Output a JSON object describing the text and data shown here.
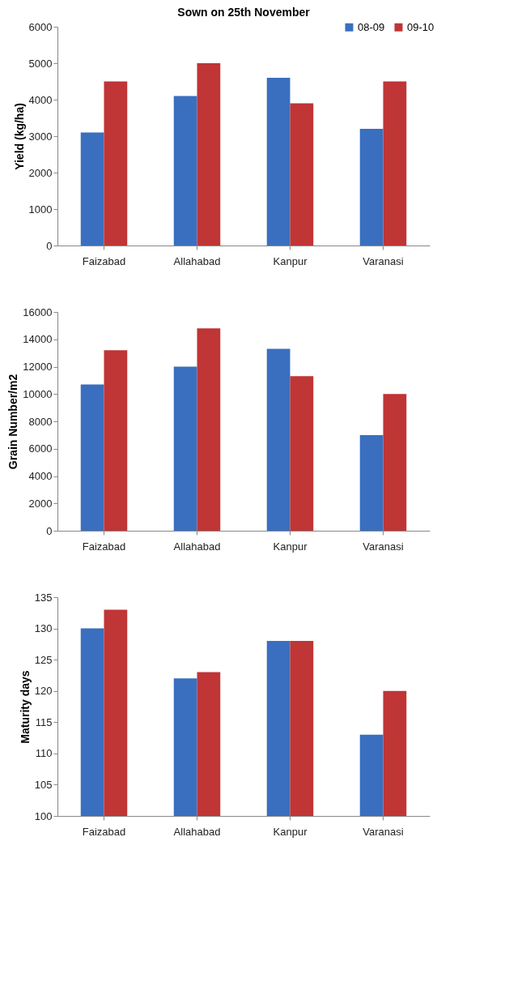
{
  "chart_data": [
    {
      "type": "bar",
      "title": "Sown on 25th November",
      "ylabel": "Yield  (kg/ha)",
      "categories": [
        "Faizabad",
        "Allahabad",
        "Kanpur",
        "Varanasi"
      ],
      "ylim": [
        0,
        6000
      ],
      "yticks": [
        0,
        1000,
        2000,
        3000,
        4000,
        5000,
        6000
      ],
      "legend": "top right",
      "series": [
        {
          "name": "08-09",
          "color": "#3a6fbf",
          "values": [
            3100,
            4100,
            4600,
            3200
          ]
        },
        {
          "name": "09-10",
          "color": "#c03535",
          "values": [
            4500,
            5000,
            3900,
            4500
          ]
        }
      ]
    },
    {
      "type": "bar",
      "ylabel": "Grain Number/m2",
      "categories": [
        "Faizabad",
        "Allahabad",
        "Kanpur",
        "Varanasi"
      ],
      "ylim": [
        0,
        16000
      ],
      "yticks": [
        0,
        2000,
        4000,
        6000,
        8000,
        10000,
        12000,
        14000,
        16000
      ],
      "series": [
        {
          "color": "#3a6fbf",
          "values": [
            10700,
            12000,
            13300,
            7000
          ]
        },
        {
          "color": "#c03535",
          "values": [
            13200,
            14800,
            11300,
            10000
          ]
        }
      ]
    },
    {
      "type": "bar",
      "ylabel": "Maturity days",
      "categories": [
        "Faizabad",
        "Allahabad",
        "Kanpur",
        "Varanasi"
      ],
      "ylim": [
        100,
        135
      ],
      "yticks": [
        100,
        105,
        110,
        115,
        120,
        125,
        130,
        135
      ],
      "series": [
        {
          "color": "#3a6fbf",
          "values": [
            130,
            122,
            128,
            113
          ]
        },
        {
          "color": "#c03535",
          "values": [
            133,
            123,
            128,
            120
          ]
        }
      ]
    }
  ]
}
